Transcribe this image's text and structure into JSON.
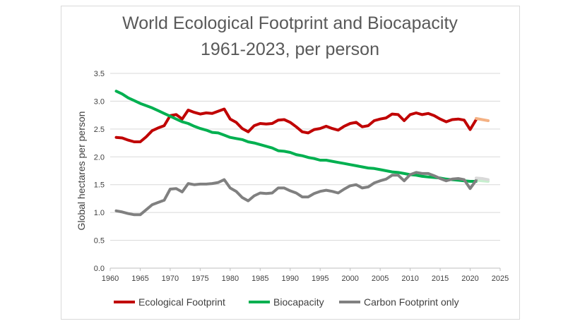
{
  "chart_data": {
    "type": "line",
    "title": "World Ecological Footprint and Biocapacity",
    "subtitle": "1961-2023, per person",
    "xlabel": "",
    "ylabel": "Global hectares  per person",
    "xlim": [
      1960,
      2025
    ],
    "ylim": [
      0,
      3.5
    ],
    "xticks": [
      "1960",
      "1965",
      "1970",
      "1975",
      "1980",
      "1985",
      "1990",
      "1995",
      "2000",
      "2005",
      "2010",
      "2015",
      "2020",
      "2025"
    ],
    "yticks": [
      "0.0",
      "0.5",
      "1.0",
      "1.5",
      "2.0",
      "2.5",
      "3.0",
      "3.5"
    ],
    "grid": true,
    "legend_position": "bottom",
    "series": [
      {
        "name": "Ecological Footprint",
        "color": "#c00000",
        "projection_color": "#f4b183",
        "x": [
          1961,
          1962,
          1963,
          1964,
          1965,
          1966,
          1967,
          1968,
          1969,
          1970,
          1971,
          1972,
          1973,
          1974,
          1975,
          1976,
          1977,
          1978,
          1979,
          1980,
          1981,
          1982,
          1983,
          1984,
          1985,
          1986,
          1987,
          1988,
          1989,
          1990,
          1991,
          1992,
          1993,
          1994,
          1995,
          1996,
          1997,
          1998,
          1999,
          2000,
          2001,
          2002,
          2003,
          2004,
          2005,
          2006,
          2007,
          2008,
          2009,
          2010,
          2011,
          2012,
          2013,
          2014,
          2015,
          2016,
          2017,
          2018,
          2019,
          2020,
          2021
        ],
        "values": [
          2.35,
          2.34,
          2.3,
          2.27,
          2.27,
          2.36,
          2.47,
          2.52,
          2.56,
          2.74,
          2.76,
          2.68,
          2.84,
          2.8,
          2.77,
          2.79,
          2.78,
          2.82,
          2.86,
          2.68,
          2.62,
          2.51,
          2.45,
          2.56,
          2.6,
          2.59,
          2.6,
          2.66,
          2.67,
          2.62,
          2.54,
          2.45,
          2.43,
          2.49,
          2.51,
          2.55,
          2.51,
          2.48,
          2.55,
          2.6,
          2.62,
          2.54,
          2.56,
          2.65,
          2.68,
          2.7,
          2.77,
          2.76,
          2.65,
          2.76,
          2.79,
          2.76,
          2.78,
          2.74,
          2.68,
          2.63,
          2.67,
          2.68,
          2.66,
          2.49,
          2.67
        ],
        "projection_x": [
          2021,
          2022,
          2023
        ],
        "projection_values": [
          2.69,
          2.67,
          2.65
        ]
      },
      {
        "name": "Biocapacity",
        "color": "#00b050",
        "projection_color": "#c6efce",
        "x": [
          1961,
          1962,
          1963,
          1964,
          1965,
          1966,
          1967,
          1968,
          1969,
          1970,
          1971,
          1972,
          1973,
          1974,
          1975,
          1976,
          1977,
          1978,
          1979,
          1980,
          1981,
          1982,
          1983,
          1984,
          1985,
          1986,
          1987,
          1988,
          1989,
          1990,
          1991,
          1992,
          1993,
          1994,
          1995,
          1996,
          1997,
          1998,
          1999,
          2000,
          2001,
          2002,
          2003,
          2004,
          2005,
          2006,
          2007,
          2008,
          2009,
          2010,
          2011,
          2012,
          2013,
          2014,
          2015,
          2016,
          2017,
          2018,
          2019,
          2020,
          2021
        ],
        "values": [
          3.18,
          3.13,
          3.06,
          3.01,
          2.96,
          2.92,
          2.88,
          2.83,
          2.78,
          2.73,
          2.68,
          2.63,
          2.6,
          2.55,
          2.51,
          2.48,
          2.44,
          2.43,
          2.39,
          2.35,
          2.33,
          2.31,
          2.27,
          2.25,
          2.22,
          2.19,
          2.16,
          2.11,
          2.1,
          2.08,
          2.04,
          2.02,
          1.99,
          1.97,
          1.94,
          1.94,
          1.92,
          1.9,
          1.88,
          1.86,
          1.84,
          1.82,
          1.8,
          1.79,
          1.77,
          1.75,
          1.73,
          1.72,
          1.7,
          1.68,
          1.67,
          1.65,
          1.64,
          1.63,
          1.62,
          1.6,
          1.59,
          1.58,
          1.57,
          1.56,
          1.56
        ],
        "projection_x": [
          2021,
          2022,
          2023
        ],
        "projection_values": [
          1.58,
          1.57,
          1.56
        ]
      },
      {
        "name": "Carbon Footprint only",
        "color": "#808080",
        "projection_color": "#d9d9d9",
        "x": [
          1961,
          1962,
          1963,
          1964,
          1965,
          1966,
          1967,
          1968,
          1969,
          1970,
          1971,
          1972,
          1973,
          1974,
          1975,
          1976,
          1977,
          1978,
          1979,
          1980,
          1981,
          1982,
          1983,
          1984,
          1985,
          1986,
          1987,
          1988,
          1989,
          1990,
          1991,
          1992,
          1993,
          1994,
          1995,
          1996,
          1997,
          1998,
          1999,
          2000,
          2001,
          2002,
          2003,
          2004,
          2005,
          2006,
          2007,
          2008,
          2009,
          2010,
          2011,
          2012,
          2013,
          2014,
          2015,
          2016,
          2017,
          2018,
          2019,
          2020,
          2021
        ],
        "values": [
          1.03,
          1.01,
          0.98,
          0.96,
          0.96,
          1.05,
          1.14,
          1.18,
          1.22,
          1.42,
          1.43,
          1.37,
          1.52,
          1.5,
          1.51,
          1.51,
          1.52,
          1.54,
          1.59,
          1.44,
          1.38,
          1.27,
          1.21,
          1.3,
          1.35,
          1.34,
          1.35,
          1.44,
          1.44,
          1.39,
          1.35,
          1.28,
          1.28,
          1.34,
          1.38,
          1.4,
          1.38,
          1.35,
          1.42,
          1.48,
          1.5,
          1.44,
          1.46,
          1.53,
          1.57,
          1.6,
          1.67,
          1.67,
          1.57,
          1.68,
          1.72,
          1.7,
          1.7,
          1.66,
          1.61,
          1.57,
          1.6,
          1.61,
          1.59,
          1.43,
          1.58
        ],
        "projection_x": [
          2021,
          2022,
          2023
        ],
        "projection_values": [
          1.62,
          1.61,
          1.59
        ]
      }
    ]
  }
}
